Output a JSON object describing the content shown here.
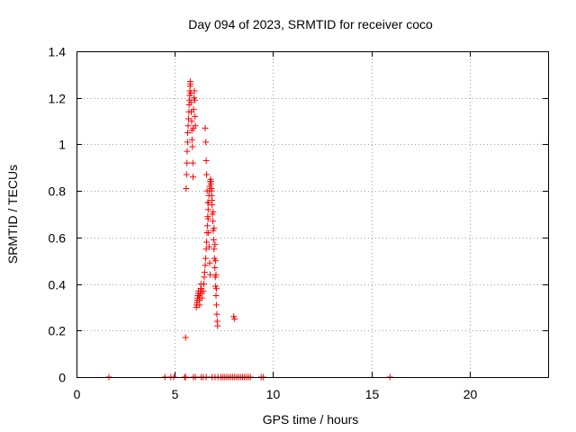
{
  "chart_data": {
    "type": "scatter",
    "title": "Day 094 of 2023, SRMTID for receiver coco",
    "xlabel": "GPS time / hours",
    "ylabel": "SRMTID / TECUs",
    "xlim": [
      0,
      24
    ],
    "ylim": [
      0,
      1.4
    ],
    "x_ticks": [
      0,
      5,
      10,
      15,
      20
    ],
    "y_ticks": [
      0,
      0.2,
      0.4,
      0.6,
      0.8,
      1,
      1.2,
      1.4
    ],
    "x_tick_labels": [
      "0",
      "5",
      "10",
      "15",
      "20"
    ],
    "y_tick_labels": [
      "0",
      "0.2",
      "0.4",
      "0.6",
      "0.8",
      "1",
      "1.2",
      "1.4"
    ],
    "grid": true,
    "marker": "+",
    "series": [
      {
        "name": "SRMTID",
        "color": "#ff0000",
        "points": [
          [
            1.65,
            0.0
          ],
          [
            4.5,
            0.0
          ],
          [
            4.8,
            0.0
          ],
          [
            4.95,
            0.0
          ],
          [
            5.5,
            0.0
          ],
          [
            5.55,
            0.0
          ],
          [
            5.95,
            0.0
          ],
          [
            6.05,
            0.0
          ],
          [
            6.35,
            0.0
          ],
          [
            6.45,
            0.0
          ],
          [
            6.6,
            0.0
          ],
          [
            6.9,
            0.0
          ],
          [
            7.05,
            0.0
          ],
          [
            7.2,
            0.0
          ],
          [
            7.35,
            0.0
          ],
          [
            7.45,
            0.0
          ],
          [
            7.55,
            0.0
          ],
          [
            7.65,
            0.0
          ],
          [
            7.75,
            0.0
          ],
          [
            7.85,
            0.0
          ],
          [
            7.95,
            0.0
          ],
          [
            8.05,
            0.0
          ],
          [
            8.15,
            0.0
          ],
          [
            8.25,
            0.0
          ],
          [
            8.35,
            0.0
          ],
          [
            8.45,
            0.0
          ],
          [
            8.55,
            0.0
          ],
          [
            8.65,
            0.0
          ],
          [
            8.75,
            0.0
          ],
          [
            8.85,
            0.0
          ],
          [
            9.4,
            0.0
          ],
          [
            9.5,
            0.0
          ],
          [
            15.95,
            0.0
          ],
          [
            5.55,
            0.17
          ],
          [
            5.58,
            0.81
          ],
          [
            5.6,
            0.87
          ],
          [
            5.62,
            0.92
          ],
          [
            5.63,
            0.97
          ],
          [
            5.65,
            1.01
          ],
          [
            5.66,
            1.05
          ],
          [
            5.68,
            1.08
          ],
          [
            5.7,
            1.11
          ],
          [
            5.72,
            1.14
          ],
          [
            5.73,
            1.17
          ],
          [
            5.75,
            1.19
          ],
          [
            5.76,
            1.21
          ],
          [
            5.77,
            1.23
          ],
          [
            5.78,
            1.25
          ],
          [
            5.79,
            1.27
          ],
          [
            5.8,
            1.26
          ],
          [
            5.82,
            1.22
          ],
          [
            5.83,
            1.18
          ],
          [
            5.84,
            1.14
          ],
          [
            5.86,
            1.1
          ],
          [
            5.87,
            1.06
          ],
          [
            5.88,
            1.02
          ],
          [
            5.9,
            0.99
          ],
          [
            5.92,
            0.92
          ],
          [
            5.93,
            0.86
          ],
          [
            5.95,
            1.07
          ],
          [
            5.96,
            1.15
          ],
          [
            5.98,
            1.2
          ],
          [
            6.0,
            1.23
          ],
          [
            6.02,
            1.19
          ],
          [
            6.03,
            1.12
          ],
          [
            6.05,
            1.08
          ],
          [
            6.1,
            0.3
          ],
          [
            6.12,
            0.31
          ],
          [
            6.13,
            0.32
          ],
          [
            6.15,
            0.33
          ],
          [
            6.16,
            0.34
          ],
          [
            6.18,
            0.35
          ],
          [
            6.2,
            0.36
          ],
          [
            6.21,
            0.37
          ],
          [
            6.23,
            0.35
          ],
          [
            6.25,
            0.33
          ],
          [
            6.27,
            0.31
          ],
          [
            6.28,
            0.34
          ],
          [
            6.3,
            0.36
          ],
          [
            6.32,
            0.38
          ],
          [
            6.33,
            0.4
          ],
          [
            6.35,
            0.38
          ],
          [
            6.37,
            0.36
          ],
          [
            6.38,
            0.34
          ],
          [
            6.45,
            0.37
          ],
          [
            6.48,
            0.4
          ],
          [
            6.5,
            0.43
          ],
          [
            6.52,
            0.45
          ],
          [
            6.55,
            0.48
          ],
          [
            6.57,
            0.51
          ],
          [
            6.6,
            0.55
          ],
          [
            6.62,
            0.58
          ],
          [
            6.64,
            0.62
          ],
          [
            6.66,
            0.65
          ],
          [
            6.68,
            0.69
          ],
          [
            6.7,
            0.72
          ],
          [
            6.72,
            0.75
          ],
          [
            6.74,
            0.78
          ],
          [
            6.76,
            0.8
          ],
          [
            6.78,
            0.82
          ],
          [
            6.8,
            0.84
          ],
          [
            6.82,
            0.85
          ],
          [
            6.84,
            0.83
          ],
          [
            6.86,
            0.81
          ],
          [
            6.88,
            0.78
          ],
          [
            6.9,
            0.74
          ],
          [
            6.92,
            0.7
          ],
          [
            6.94,
            0.67
          ],
          [
            6.96,
            0.63
          ],
          [
            6.98,
            0.59
          ],
          [
            7.0,
            0.55
          ],
          [
            7.02,
            0.51
          ],
          [
            7.04,
            0.47
          ],
          [
            7.06,
            0.43
          ],
          [
            7.08,
            0.39
          ],
          [
            7.1,
            0.35
          ],
          [
            7.12,
            0.31
          ],
          [
            7.14,
            0.27
          ],
          [
            7.16,
            0.24
          ],
          [
            7.18,
            0.22
          ],
          [
            6.55,
            1.07
          ],
          [
            6.58,
            1.01
          ],
          [
            6.6,
            0.93
          ],
          [
            6.62,
            0.87
          ],
          [
            6.65,
            0.8
          ],
          [
            6.68,
            0.75
          ],
          [
            6.7,
            0.68
          ],
          [
            6.72,
            0.62
          ],
          [
            6.75,
            0.56
          ],
          [
            6.78,
            0.49
          ],
          [
            6.8,
            0.44
          ],
          [
            6.85,
            0.84
          ],
          [
            6.88,
            0.8
          ],
          [
            6.9,
            0.76
          ],
          [
            6.95,
            0.71
          ],
          [
            7.0,
            0.64
          ],
          [
            7.05,
            0.57
          ],
          [
            7.08,
            0.5
          ],
          [
            7.1,
            0.44
          ],
          [
            7.12,
            0.38
          ],
          [
            8.0,
            0.26
          ],
          [
            8.05,
            0.25
          ]
        ]
      }
    ]
  }
}
